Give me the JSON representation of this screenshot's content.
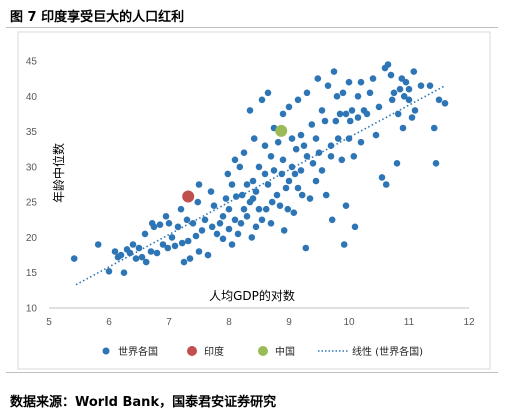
{
  "figure": {
    "title": "图 7 印度享受巨大的人口红利",
    "source": "数据来源：World Bank，国泰君安证券研究"
  },
  "chart_data": {
    "type": "scatter",
    "title": "",
    "xlabel": "人均GDP的对数",
    "ylabel": "年龄中位数",
    "xlim": [
      5,
      12
    ],
    "ylim": [
      10,
      45
    ],
    "xticks": [
      "5",
      "6",
      "7",
      "8",
      "9",
      "10",
      "11",
      "12"
    ],
    "yticks": [
      "10",
      "15",
      "20",
      "25",
      "30",
      "35",
      "40",
      "45"
    ],
    "grid": false,
    "legend_position": "bottom",
    "legend": [
      "世界各国",
      "印度",
      "中国",
      "线性 (世界各国)"
    ],
    "colors": {
      "world": "#2e75b6",
      "india": "#c0504d",
      "china": "#9bbb59",
      "trend": "#2e75b6"
    },
    "trendline": {
      "x": [
        5.45,
        11.6
      ],
      "y": [
        13.3,
        41.5
      ]
    },
    "series": [
      {
        "name": "世界各国",
        "points": [
          [
            5.42,
            17.0
          ],
          [
            5.82,
            19.0
          ],
          [
            6.0,
            15.2
          ],
          [
            6.1,
            18.0
          ],
          [
            6.15,
            17.2
          ],
          [
            6.2,
            17.5
          ],
          [
            6.25,
            15.0
          ],
          [
            6.3,
            18.3
          ],
          [
            6.35,
            17.8
          ],
          [
            6.4,
            19.0
          ],
          [
            6.45,
            17.0
          ],
          [
            6.5,
            18.5
          ],
          [
            6.55,
            17.2
          ],
          [
            6.6,
            20.5
          ],
          [
            6.62,
            16.5
          ],
          [
            6.7,
            18.0
          ],
          [
            6.72,
            22.0
          ],
          [
            6.75,
            21.5
          ],
          [
            6.8,
            17.8
          ],
          [
            6.85,
            21.8
          ],
          [
            6.9,
            19.0
          ],
          [
            6.95,
            23.0
          ],
          [
            6.98,
            18.5
          ],
          [
            7.0,
            22.0
          ],
          [
            7.05,
            20.0
          ],
          [
            7.1,
            18.8
          ],
          [
            7.15,
            21.5
          ],
          [
            7.2,
            24.0
          ],
          [
            7.22,
            19.2
          ],
          [
            7.25,
            16.5
          ],
          [
            7.3,
            22.5
          ],
          [
            7.32,
            19.5
          ],
          [
            7.35,
            17.0
          ],
          [
            7.4,
            22.0
          ],
          [
            7.45,
            20.2
          ],
          [
            7.48,
            25.0
          ],
          [
            7.5,
            18.0
          ],
          [
            7.5,
            27.5
          ],
          [
            7.55,
            21.0
          ],
          [
            7.6,
            22.5
          ],
          [
            7.65,
            17.5
          ],
          [
            7.7,
            26.5
          ],
          [
            7.72,
            21.5
          ],
          [
            7.75,
            24.5
          ],
          [
            7.8,
            20.5
          ],
          [
            7.85,
            22.0
          ],
          [
            7.9,
            23.0
          ],
          [
            7.9,
            19.8
          ],
          [
            7.95,
            25.5
          ],
          [
            7.98,
            29.0
          ],
          [
            8.0,
            24.0
          ],
          [
            8.0,
            21.2
          ],
          [
            8.05,
            27.5
          ],
          [
            8.05,
            19.0
          ],
          [
            8.1,
            31.0
          ],
          [
            8.1,
            22.5
          ],
          [
            8.12,
            25.8
          ],
          [
            8.15,
            20.5
          ],
          [
            8.18,
            30.0
          ],
          [
            8.2,
            22.0
          ],
          [
            8.22,
            26.0
          ],
          [
            8.25,
            24.0
          ],
          [
            8.25,
            32.0
          ],
          [
            8.3,
            27.5
          ],
          [
            8.3,
            23.0
          ],
          [
            8.35,
            25.0
          ],
          [
            8.35,
            38.0
          ],
          [
            8.38,
            20.0
          ],
          [
            8.4,
            25.5
          ],
          [
            8.4,
            28.0
          ],
          [
            8.42,
            34.0
          ],
          [
            8.45,
            21.5
          ],
          [
            8.45,
            26.5
          ],
          [
            8.5,
            24.0
          ],
          [
            8.5,
            30.0
          ],
          [
            8.55,
            22.5
          ],
          [
            8.55,
            39.5
          ],
          [
            8.6,
            29.0
          ],
          [
            8.6,
            33.0
          ],
          [
            8.62,
            24.0
          ],
          [
            8.65,
            27.5
          ],
          [
            8.65,
            40.5
          ],
          [
            8.7,
            22.0
          ],
          [
            8.7,
            31.5
          ],
          [
            8.72,
            25.0
          ],
          [
            8.75,
            29.5
          ],
          [
            8.75,
            35.5
          ],
          [
            8.8,
            26.0
          ],
          [
            8.82,
            33.5
          ],
          [
            8.85,
            24.5
          ],
          [
            8.88,
            29.0
          ],
          [
            8.9,
            37.5
          ],
          [
            8.9,
            31.0
          ],
          [
            8.92,
            21.0
          ],
          [
            8.95,
            27.0
          ],
          [
            8.98,
            24.0
          ],
          [
            9.0,
            28.0
          ],
          [
            9.0,
            38.5
          ],
          [
            9.05,
            30.0
          ],
          [
            9.05,
            34.0
          ],
          [
            9.08,
            23.5
          ],
          [
            9.1,
            29.0
          ],
          [
            9.12,
            32.5
          ],
          [
            9.15,
            39.5
          ],
          [
            9.15,
            27.0
          ],
          [
            9.2,
            34.5
          ],
          [
            9.2,
            29.5
          ],
          [
            9.22,
            26.0
          ],
          [
            9.25,
            33.0
          ],
          [
            9.28,
            18.5
          ],
          [
            9.3,
            31.5
          ],
          [
            9.3,
            40.5
          ],
          [
            9.35,
            25.5
          ],
          [
            9.38,
            36.0
          ],
          [
            9.4,
            30.5
          ],
          [
            9.45,
            28.0
          ],
          [
            9.45,
            34.0
          ],
          [
            9.48,
            42.5
          ],
          [
            9.5,
            32.0
          ],
          [
            9.55,
            38.0
          ],
          [
            9.55,
            29.5
          ],
          [
            9.6,
            36.5
          ],
          [
            9.62,
            26.0
          ],
          [
            9.65,
            41.5
          ],
          [
            9.7,
            33.0
          ],
          [
            9.7,
            31.5
          ],
          [
            9.72,
            22.5
          ],
          [
            9.75,
            43.5
          ],
          [
            9.78,
            36.5
          ],
          [
            9.8,
            40.0
          ],
          [
            9.82,
            34.0
          ],
          [
            9.85,
            37.5
          ],
          [
            9.88,
            31.0
          ],
          [
            9.9,
            40.5
          ],
          [
            9.92,
            19.0
          ],
          [
            9.95,
            37.5
          ],
          [
            9.95,
            24.5
          ],
          [
            10.0,
            42.0
          ],
          [
            10.0,
            34.0
          ],
          [
            10.02,
            36.5
          ],
          [
            10.05,
            38.0
          ],
          [
            10.08,
            31.5
          ],
          [
            10.1,
            21.5
          ],
          [
            10.15,
            37.0
          ],
          [
            10.15,
            40.0
          ],
          [
            10.2,
            42.0
          ],
          [
            10.2,
            33.5
          ],
          [
            10.25,
            38.0
          ],
          [
            10.3,
            37.5
          ],
          [
            10.35,
            40.5
          ],
          [
            10.4,
            42.5
          ],
          [
            10.45,
            34.5
          ],
          [
            10.5,
            38.5
          ],
          [
            10.55,
            28.5
          ],
          [
            10.6,
            44.0
          ],
          [
            10.62,
            27.5
          ],
          [
            10.65,
            44.5
          ],
          [
            10.7,
            43.0
          ],
          [
            10.72,
            39.5
          ],
          [
            10.75,
            40.5
          ],
          [
            10.8,
            30.5
          ],
          [
            10.82,
            37.5
          ],
          [
            10.85,
            41.0
          ],
          [
            10.88,
            42.5
          ],
          [
            10.9,
            35.5
          ],
          [
            10.92,
            40.0
          ],
          [
            10.95,
            42.0
          ],
          [
            11.0,
            41.0
          ],
          [
            11.0,
            39.5
          ],
          [
            11.05,
            37.0
          ],
          [
            11.08,
            43.5
          ],
          [
            11.1,
            38.0
          ],
          [
            11.2,
            41.5
          ],
          [
            11.35,
            41.5
          ],
          [
            11.42,
            35.5
          ],
          [
            11.45,
            30.5
          ],
          [
            11.5,
            39.5
          ],
          [
            11.6,
            39.0
          ]
        ]
      },
      {
        "name": "印度",
        "points": [
          [
            7.32,
            25.8
          ]
        ]
      },
      {
        "name": "中国",
        "points": [
          [
            8.87,
            35.1
          ]
        ]
      }
    ]
  }
}
